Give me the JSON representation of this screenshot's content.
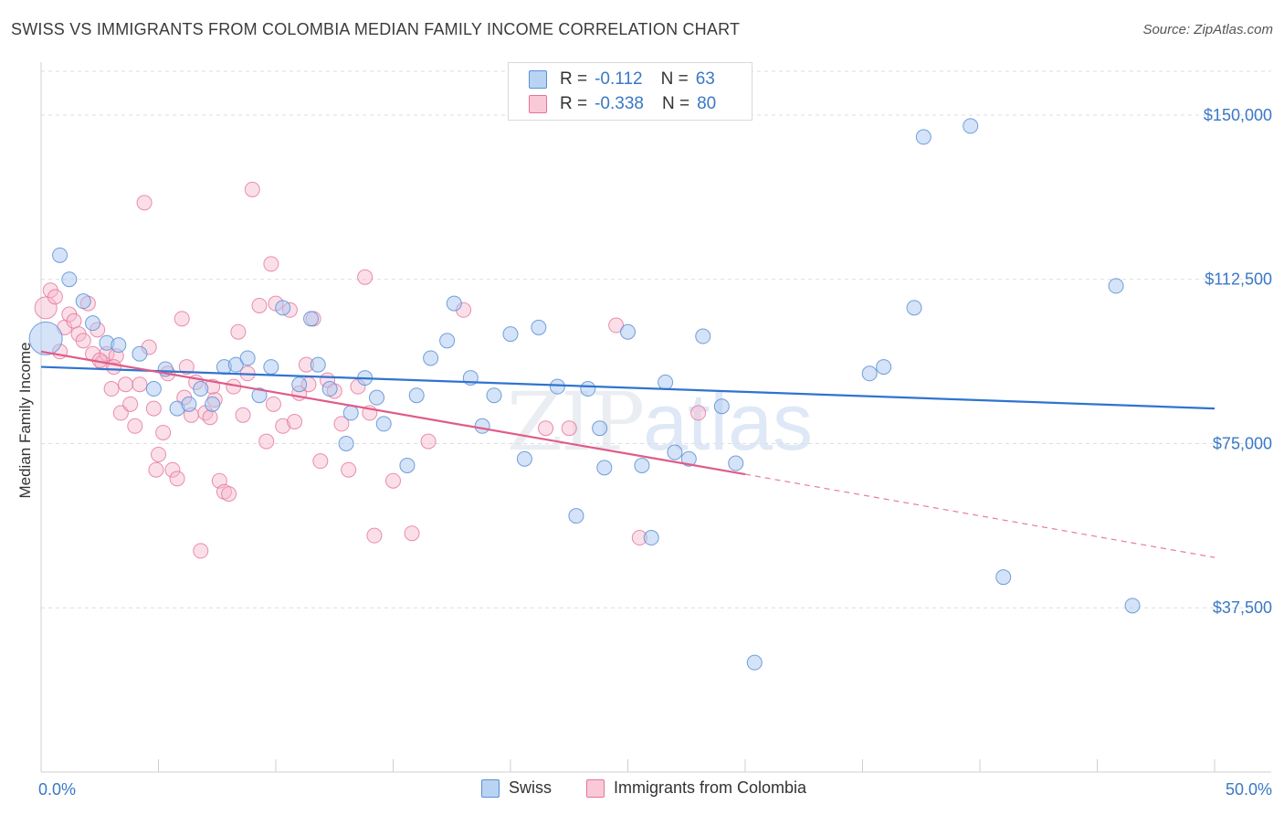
{
  "title": "SWISS VS IMMIGRANTS FROM COLOMBIA MEDIAN FAMILY INCOME CORRELATION CHART",
  "source": "Source: ZipAtlas.com",
  "watermark": {
    "zip": "ZIP",
    "atlas": "atlas"
  },
  "legend": {
    "r_label": "R =",
    "n_label": "N =",
    "series": [
      {
        "name": "Swiss",
        "r": "-0.112",
        "n": "63"
      },
      {
        "name": "Immigrants from Colombia",
        "r": "-0.338",
        "n": "80"
      }
    ]
  },
  "colors": {
    "swiss_fill": "#a9c8f0",
    "swiss_stroke": "#5b8fd6",
    "swiss_line": "#2f74d0",
    "colombia_fill": "#f7b9cc",
    "colombia_stroke": "#e5739a",
    "colombia_line": "#e05b88",
    "axis_label": "#3a78c6"
  },
  "chart_data": {
    "type": "scatter",
    "title": "SWISS VS IMMIGRANTS FROM COLOMBIA MEDIAN FAMILY INCOME CORRELATION CHART",
    "xlabel": "",
    "ylabel": "Median Family Income",
    "xlim": [
      0,
      50
    ],
    "ylim": [
      0,
      160000
    ],
    "x_tick_labels": [
      "0.0%",
      "50.0%"
    ],
    "y_ticks": [
      37500,
      75000,
      112500,
      150000
    ],
    "y_tick_labels": [
      "$37,500",
      "$75,000",
      "$112,500",
      "$150,000"
    ],
    "grid": true,
    "series": [
      {
        "name": "Swiss",
        "trend": {
          "x": [
            0,
            50
          ],
          "y": [
            92500,
            83000
          ]
        },
        "points": [
          [
            0.2,
            99000
          ],
          [
            0.8,
            118000
          ],
          [
            1.2,
            112500
          ],
          [
            1.8,
            107500
          ],
          [
            2.2,
            102500
          ],
          [
            2.8,
            98000
          ],
          [
            3.3,
            97500
          ],
          [
            4.2,
            95500
          ],
          [
            4.8,
            87500
          ],
          [
            5.3,
            92000
          ],
          [
            5.8,
            83000
          ],
          [
            6.3,
            84000
          ],
          [
            6.8,
            87500
          ],
          [
            7.3,
            84000
          ],
          [
            7.8,
            92500
          ],
          [
            8.3,
            93000
          ],
          [
            8.8,
            94500
          ],
          [
            9.3,
            86000
          ],
          [
            9.8,
            92500
          ],
          [
            10.3,
            106000
          ],
          [
            11.0,
            88500
          ],
          [
            11.5,
            103500
          ],
          [
            11.8,
            93000
          ],
          [
            12.3,
            87500
          ],
          [
            13.0,
            75000
          ],
          [
            13.2,
            82000
          ],
          [
            13.8,
            90000
          ],
          [
            14.3,
            85500
          ],
          [
            14.6,
            79500
          ],
          [
            15.6,
            70000
          ],
          [
            16.0,
            86000
          ],
          [
            16.6,
            94500
          ],
          [
            17.3,
            98500
          ],
          [
            17.6,
            107000
          ],
          [
            18.3,
            90000
          ],
          [
            18.8,
            79000
          ],
          [
            19.3,
            86000
          ],
          [
            20.0,
            100000
          ],
          [
            20.6,
            71500
          ],
          [
            21.2,
            101500
          ],
          [
            22.0,
            88000
          ],
          [
            22.8,
            58500
          ],
          [
            23.3,
            87500
          ],
          [
            23.8,
            78500
          ],
          [
            24.0,
            69500
          ],
          [
            25.0,
            100500
          ],
          [
            25.6,
            70000
          ],
          [
            26.0,
            53500
          ],
          [
            26.6,
            89000
          ],
          [
            27.0,
            73000
          ],
          [
            27.6,
            71500
          ],
          [
            28.2,
            99500
          ],
          [
            29.0,
            83500
          ],
          [
            29.6,
            70500
          ],
          [
            30.4,
            25000
          ],
          [
            35.3,
            91000
          ],
          [
            35.9,
            92500
          ],
          [
            37.2,
            106000
          ],
          [
            37.6,
            145000
          ],
          [
            39.6,
            147500
          ],
          [
            41.0,
            44500
          ],
          [
            45.8,
            111000
          ],
          [
            46.5,
            38000
          ]
        ]
      },
      {
        "name": "Immigrants from Colombia",
        "trend": {
          "x": [
            0,
            30
          ],
          "y": [
            96000,
            68000
          ]
        },
        "trend_dashed": {
          "x": [
            30,
            50
          ],
          "y": [
            68000,
            49000
          ]
        },
        "points": [
          [
            0.2,
            106000
          ],
          [
            0.4,
            110000
          ],
          [
            0.6,
            108500
          ],
          [
            0.8,
            96000
          ],
          [
            1.0,
            101500
          ],
          [
            1.2,
            104500
          ],
          [
            1.4,
            103000
          ],
          [
            1.6,
            100000
          ],
          [
            1.8,
            98500
          ],
          [
            2.0,
            107000
          ],
          [
            2.2,
            95500
          ],
          [
            2.4,
            101000
          ],
          [
            2.6,
            93500
          ],
          [
            2.8,
            95500
          ],
          [
            3.0,
            87500
          ],
          [
            3.2,
            95000
          ],
          [
            3.4,
            82000
          ],
          [
            3.6,
            88500
          ],
          [
            3.8,
            84000
          ],
          [
            4.0,
            79000
          ],
          [
            4.2,
            88500
          ],
          [
            4.4,
            130000
          ],
          [
            4.6,
            97000
          ],
          [
            4.8,
            83000
          ],
          [
            4.9,
            69000
          ],
          [
            5.0,
            72500
          ],
          [
            5.2,
            77500
          ],
          [
            5.4,
            91000
          ],
          [
            5.6,
            69000
          ],
          [
            5.8,
            67000
          ],
          [
            6.0,
            103500
          ],
          [
            6.2,
            92500
          ],
          [
            6.4,
            81500
          ],
          [
            6.6,
            89000
          ],
          [
            6.8,
            50500
          ],
          [
            7.0,
            82000
          ],
          [
            7.2,
            81000
          ],
          [
            7.4,
            85000
          ],
          [
            7.6,
            66500
          ],
          [
            7.8,
            64000
          ],
          [
            8.0,
            63500
          ],
          [
            8.2,
            88000
          ],
          [
            8.4,
            100500
          ],
          [
            8.6,
            81500
          ],
          [
            8.8,
            91000
          ],
          [
            9.0,
            133000
          ],
          [
            9.3,
            106500
          ],
          [
            9.6,
            75500
          ],
          [
            9.8,
            116000
          ],
          [
            10.0,
            107000
          ],
          [
            10.3,
            79000
          ],
          [
            10.6,
            105500
          ],
          [
            10.8,
            80000
          ],
          [
            11.0,
            86500
          ],
          [
            11.3,
            93000
          ],
          [
            11.6,
            103500
          ],
          [
            11.9,
            71000
          ],
          [
            12.2,
            89500
          ],
          [
            12.5,
            87000
          ],
          [
            12.8,
            79500
          ],
          [
            13.1,
            69000
          ],
          [
            13.5,
            88000
          ],
          [
            13.8,
            113000
          ],
          [
            14.2,
            54000
          ],
          [
            15.0,
            66500
          ],
          [
            15.8,
            54500
          ],
          [
            16.5,
            75500
          ],
          [
            18.0,
            105500
          ],
          [
            21.5,
            78500
          ],
          [
            22.5,
            78500
          ],
          [
            24.5,
            102000
          ],
          [
            25.5,
            53500
          ],
          [
            28.0,
            82000
          ],
          [
            2.5,
            94000
          ],
          [
            3.1,
            92500
          ],
          [
            6.1,
            85500
          ],
          [
            7.3,
            88000
          ],
          [
            9.9,
            84000
          ],
          [
            11.4,
            88500
          ],
          [
            14.0,
            82000
          ]
        ]
      }
    ]
  }
}
